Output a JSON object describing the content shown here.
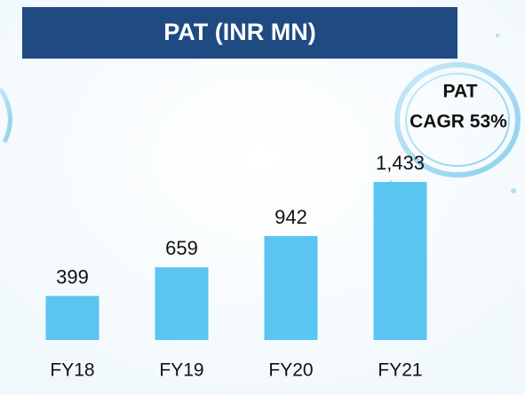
{
  "chart_data": {
    "type": "bar",
    "title": "PAT (INR MN)",
    "annotation": [
      "PAT",
      "CAGR 53%"
    ],
    "categories": [
      "FY18",
      "FY19",
      "FY20",
      "FY21"
    ],
    "values": [
      399,
      659,
      942,
      1433
    ],
    "value_labels": [
      "399",
      "659",
      "942",
      "1,433"
    ],
    "color": "#5bc5f2"
  }
}
